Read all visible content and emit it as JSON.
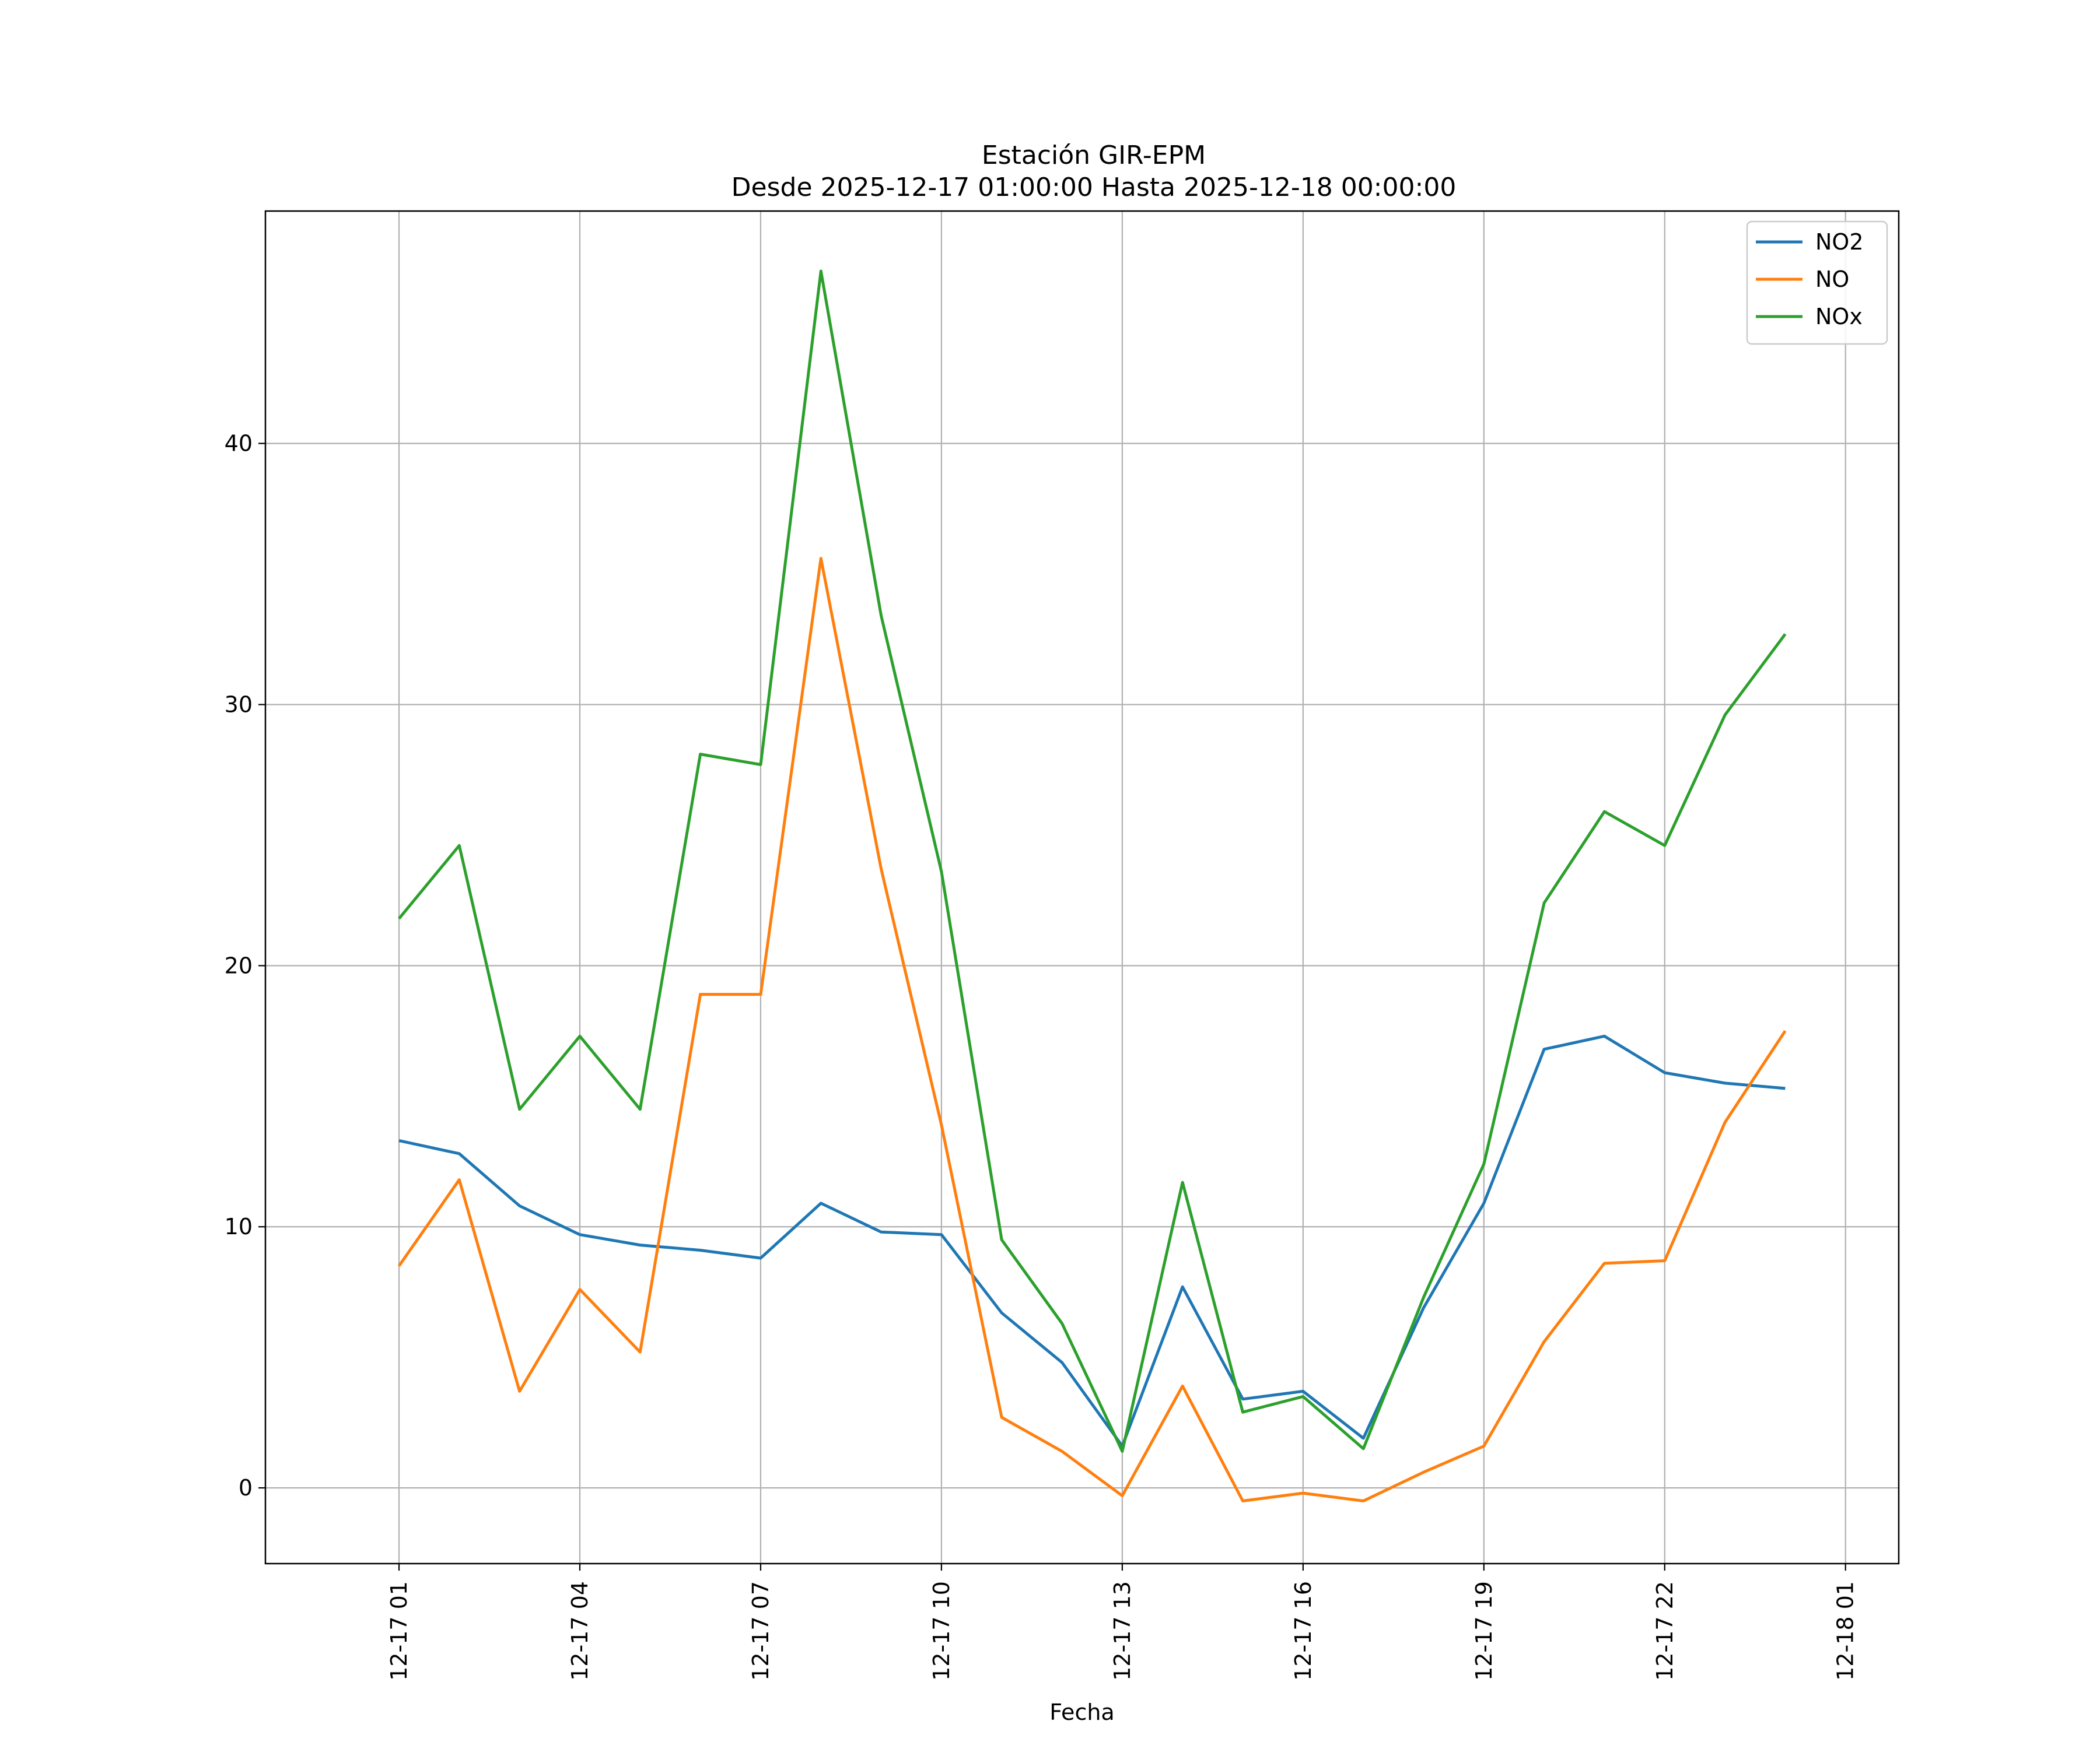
{
  "chart_data": {
    "type": "line",
    "title": "Estación GIR-EPM",
    "subtitle": "Desde 2025-12-17 01:00:00 Hasta 2025-12-18 00:00:00",
    "xlabel": "Fecha",
    "ylabel": "",
    "x": [
      "2025-12-17 01:00",
      "2025-12-17 02:00",
      "2025-12-17 03:00",
      "2025-12-17 04:00",
      "2025-12-17 05:00",
      "2025-12-17 06:00",
      "2025-12-17 07:00",
      "2025-12-17 08:00",
      "2025-12-17 09:00",
      "2025-12-17 10:00",
      "2025-12-17 11:00",
      "2025-12-17 12:00",
      "2025-12-17 13:00",
      "2025-12-17 14:00",
      "2025-12-17 15:00",
      "2025-12-17 16:00",
      "2025-12-17 17:00",
      "2025-12-17 18:00",
      "2025-12-17 19:00",
      "2025-12-17 20:00",
      "2025-12-17 21:00",
      "2025-12-17 22:00",
      "2025-12-17 23:00",
      "2025-12-18 00:00"
    ],
    "xticks": [
      "12-17 01",
      "12-17 04",
      "12-17 07",
      "12-17 10",
      "12-17 13",
      "12-17 16",
      "12-17 19",
      "12-17 22",
      "12-18 01"
    ],
    "xlim": [
      "2025-12-16 22:47",
      "2025-12-18 01:53"
    ],
    "yticks": [
      0,
      10,
      20,
      30,
      40
    ],
    "ylim": [
      -2.9,
      48.9
    ],
    "grid": true,
    "legend_position": "top-right",
    "series": [
      {
        "name": "NO2",
        "color": "#1f77b4",
        "values": [
          13.3,
          12.8,
          10.8,
          9.7,
          9.3,
          9.1,
          8.8,
          10.9,
          9.8,
          9.7,
          6.7,
          4.8,
          1.6,
          7.7,
          3.4,
          3.7,
          1.9,
          6.9,
          10.9,
          16.8,
          17.3,
          15.9,
          15.5,
          15.3
        ]
      },
      {
        "name": "NO",
        "color": "#ff7f0e",
        "values": [
          8.5,
          11.8,
          3.7,
          7.6,
          5.2,
          18.9,
          18.9,
          35.6,
          23.7,
          13.9,
          2.7,
          1.4,
          -0.3,
          3.9,
          -0.5,
          -0.2,
          -0.5,
          0.6,
          1.6,
          5.6,
          8.6,
          8.7,
          14.0,
          17.5
        ]
      },
      {
        "name": "NOx",
        "color": "#2ca02c",
        "values": [
          21.8,
          24.6,
          14.5,
          17.3,
          14.5,
          28.1,
          27.7,
          46.6,
          33.4,
          23.6,
          9.5,
          6.3,
          1.4,
          11.7,
          2.9,
          3.5,
          1.5,
          7.3,
          12.4,
          22.4,
          25.9,
          24.6,
          29.6,
          32.7
        ]
      }
    ]
  }
}
